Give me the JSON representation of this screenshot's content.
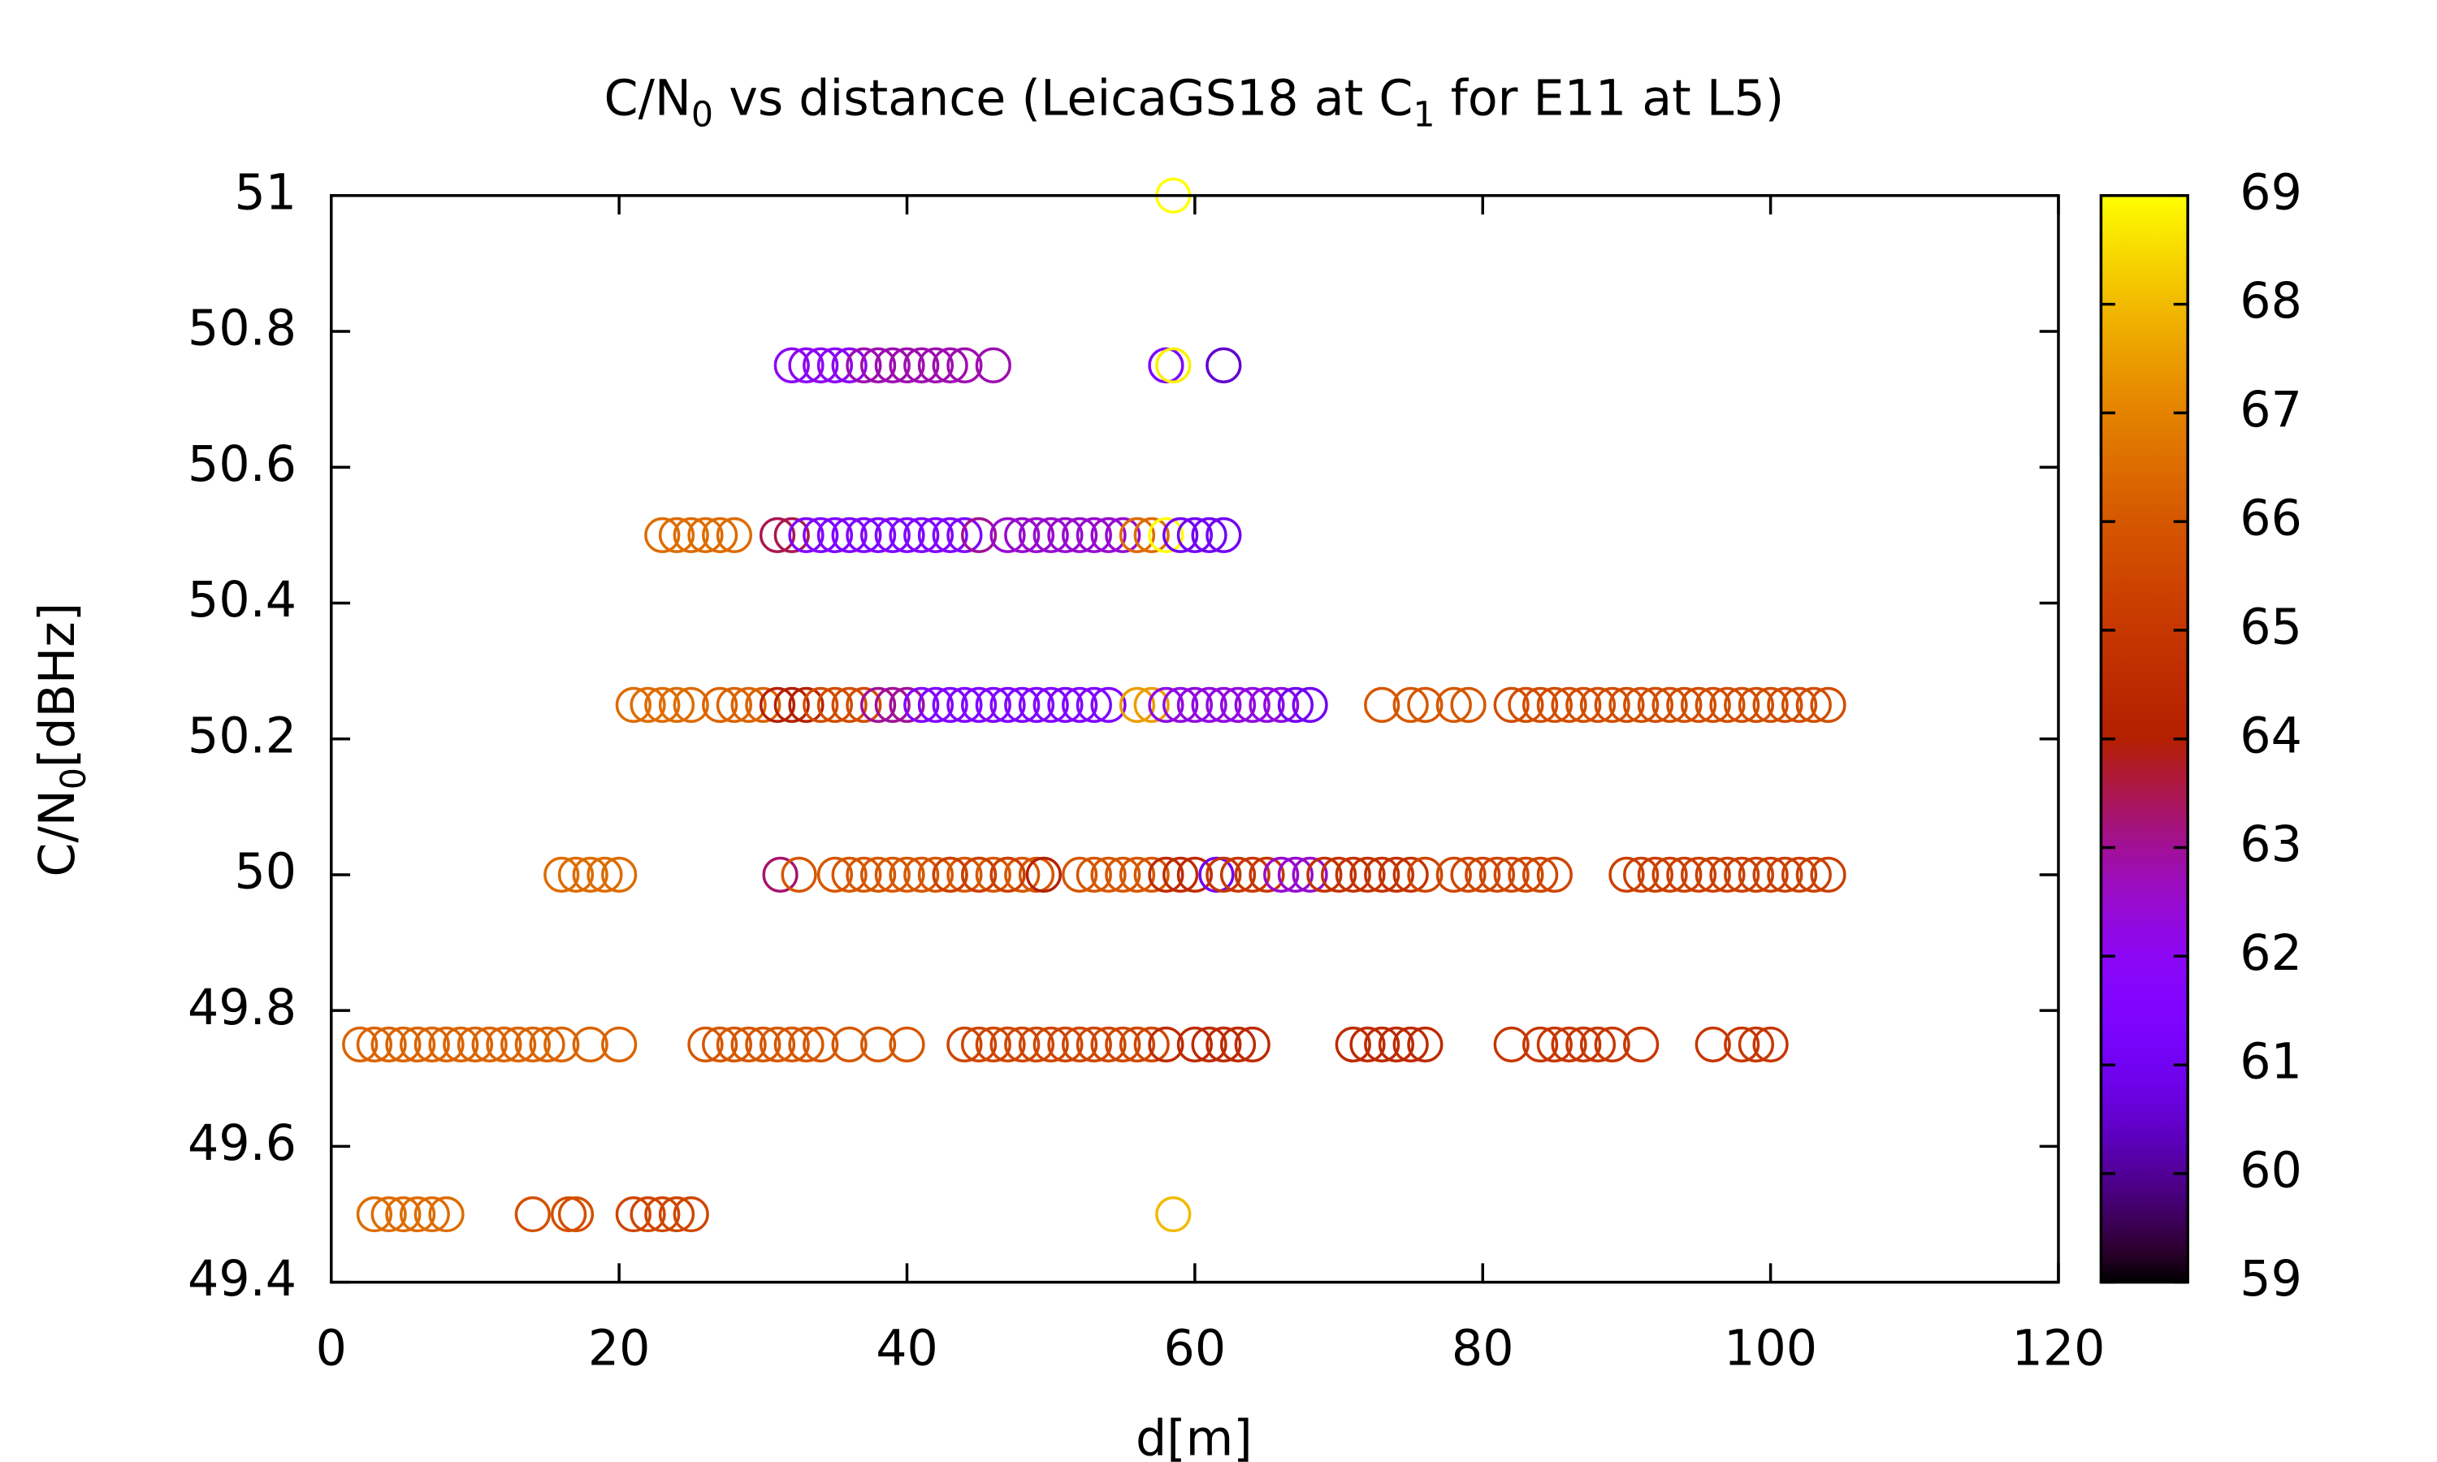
{
  "chart_data": {
    "type": "scatter",
    "title": [
      "C/N",
      "0",
      " vs distance (LeicaGS18 at C",
      "1",
      " for E11 at L5)"
    ],
    "xlabel": "d[m]",
    "ylabel": [
      "C/N",
      "0",
      "[dBHz]"
    ],
    "xlim": [
      0,
      120
    ],
    "xticks": [
      0,
      20,
      40,
      60,
      80,
      100,
      120
    ],
    "ylim": [
      49.4,
      51
    ],
    "yticks": [
      49.4,
      49.6,
      49.8,
      50,
      50.2,
      50.4,
      50.6,
      50.8,
      51
    ],
    "clim": [
      59,
      69
    ],
    "cticks": [
      59,
      60,
      61,
      62,
      63,
      64,
      65,
      66,
      67,
      68,
      69
    ],
    "x": [
      3,
      4,
      5,
      6,
      7,
      8,
      14,
      16.5,
      17,
      21,
      22,
      23,
      24,
      25,
      58.5,
      2,
      3,
      4,
      5,
      6,
      7,
      8,
      9,
      10,
      11,
      12,
      13,
      14,
      15,
      16,
      18,
      20,
      26,
      27,
      28,
      29,
      30,
      31,
      32,
      33,
      34,
      36,
      38,
      40,
      44,
      45,
      46,
      47,
      48,
      49,
      50,
      51,
      52,
      53,
      54,
      55,
      56,
      57,
      58,
      60,
      61,
      62,
      63,
      64,
      71,
      72,
      73,
      74,
      75,
      76,
      82,
      84,
      85,
      86,
      87,
      88,
      89,
      91,
      96,
      98,
      99,
      100,
      16,
      17,
      18,
      19,
      20,
      31.2,
      32.5,
      35,
      36,
      37,
      38,
      39,
      40,
      41,
      42,
      43,
      44,
      45,
      46,
      47,
      48,
      49,
      43,
      45,
      47,
      49.5,
      52,
      53,
      54,
      55,
      56,
      57,
      58,
      59,
      60,
      61.5,
      62,
      63,
      64,
      65,
      66,
      67,
      68,
      69,
      70,
      71,
      72,
      73,
      74,
      75,
      76,
      78,
      79,
      80,
      81,
      82,
      83,
      84,
      85,
      90,
      91,
      92,
      93,
      94,
      95,
      96,
      97,
      98,
      99,
      100,
      101,
      102,
      103,
      104,
      21,
      22,
      23,
      24,
      25,
      27,
      28,
      29,
      30,
      31,
      32,
      33,
      34,
      35,
      36,
      37,
      38,
      39,
      40,
      41,
      42,
      43,
      44,
      45,
      46,
      47,
      48,
      49,
      50,
      51,
      52,
      53,
      54,
      56,
      57,
      58,
      59,
      60,
      61,
      62,
      63,
      64,
      65,
      66,
      67,
      68,
      73,
      75,
      76,
      78,
      79,
      82,
      83,
      84,
      85,
      86,
      87,
      88,
      89,
      90,
      91,
      92,
      93,
      94,
      95,
      96,
      97,
      98,
      99,
      100,
      101,
      102,
      103,
      104,
      23,
      24,
      25,
      26,
      27,
      28,
      31,
      32,
      33,
      34,
      35,
      36,
      37,
      38,
      39,
      40,
      41,
      42,
      43,
      44,
      45,
      47,
      48,
      49,
      50,
      51,
      52,
      53,
      54,
      55,
      56,
      57,
      58,
      59,
      60,
      61,
      62,
      32,
      33,
      34,
      35,
      36,
      37,
      38,
      39,
      40,
      41,
      42,
      43,
      44,
      46,
      58,
      58.5,
      62,
      58.5
    ],
    "y": [
      49.5,
      49.5,
      49.5,
      49.5,
      49.5,
      49.5,
      49.5,
      49.5,
      49.5,
      49.5,
      49.5,
      49.5,
      49.5,
      49.5,
      49.5,
      49.75,
      49.75,
      49.75,
      49.75,
      49.75,
      49.75,
      49.75,
      49.75,
      49.75,
      49.75,
      49.75,
      49.75,
      49.75,
      49.75,
      49.75,
      49.75,
      49.75,
      49.75,
      49.75,
      49.75,
      49.75,
      49.75,
      49.75,
      49.75,
      49.75,
      49.75,
      49.75,
      49.75,
      49.75,
      49.75,
      49.75,
      49.75,
      49.75,
      49.75,
      49.75,
      49.75,
      49.75,
      49.75,
      49.75,
      49.75,
      49.75,
      49.75,
      49.75,
      49.75,
      49.75,
      49.75,
      49.75,
      49.75,
      49.75,
      49.75,
      49.75,
      49.75,
      49.75,
      49.75,
      49.75,
      49.75,
      49.75,
      49.75,
      49.75,
      49.75,
      49.75,
      49.75,
      49.75,
      49.75,
      49.75,
      49.75,
      49.75,
      50,
      50,
      50,
      50,
      50,
      50,
      50,
      50,
      50,
      50,
      50,
      50,
      50,
      50,
      50,
      50,
      50,
      50,
      50,
      50,
      50,
      50,
      50,
      50,
      50,
      50,
      50,
      50,
      50,
      50,
      50,
      50,
      50,
      50,
      50,
      50,
      50,
      50,
      50,
      50,
      50,
      50,
      50,
      50,
      50,
      50,
      50,
      50,
      50,
      50,
      50,
      50,
      50,
      50,
      50,
      50,
      50,
      50,
      50,
      50,
      50,
      50,
      50,
      50,
      50,
      50,
      50,
      50,
      50,
      50,
      50,
      50,
      50,
      50,
      50.25,
      50.25,
      50.25,
      50.25,
      50.25,
      50.25,
      50.25,
      50.25,
      50.25,
      50.25,
      50.25,
      50.25,
      50.25,
      50.25,
      50.25,
      50.25,
      50.25,
      50.25,
      50.25,
      50.25,
      50.25,
      50.25,
      50.25,
      50.25,
      50.25,
      50.25,
      50.25,
      50.25,
      50.25,
      50.25,
      50.25,
      50.25,
      50.25,
      50.25,
      50.25,
      50.25,
      50.25,
      50.25,
      50.25,
      50.25,
      50.25,
      50.25,
      50.25,
      50.25,
      50.25,
      50.25,
      50.25,
      50.25,
      50.25,
      50.25,
      50.25,
      50.25,
      50.25,
      50.25,
      50.25,
      50.25,
      50.25,
      50.25,
      50.25,
      50.25,
      50.25,
      50.25,
      50.25,
      50.25,
      50.25,
      50.25,
      50.25,
      50.25,
      50.25,
      50.25,
      50.25,
      50.25,
      50.25,
      50.25,
      50.5,
      50.5,
      50.5,
      50.5,
      50.5,
      50.5,
      50.5,
      50.5,
      50.5,
      50.5,
      50.5,
      50.5,
      50.5,
      50.5,
      50.5,
      50.5,
      50.5,
      50.5,
      50.5,
      50.5,
      50.5,
      50.5,
      50.5,
      50.5,
      50.5,
      50.5,
      50.5,
      50.5,
      50.5,
      50.5,
      50.5,
      50.5,
      50.5,
      50.5,
      50.5,
      50.5,
      50.5,
      50.75,
      50.75,
      50.75,
      50.75,
      50.75,
      50.75,
      50.75,
      50.75,
      50.75,
      50.75,
      50.75,
      50.75,
      50.75,
      50.75,
      50.75,
      50.75,
      50.75,
      51
    ],
    "c": [
      66.5,
      66.5,
      66.5,
      66.5,
      66.5,
      66.5,
      65.8,
      65.8,
      65.8,
      65.5,
      65.5,
      65.5,
      65.5,
      65.5,
      68,
      66.3,
      66.3,
      66.3,
      66.3,
      66.3,
      66.3,
      66.3,
      66.3,
      66.3,
      66.3,
      66.3,
      66.3,
      66.3,
      66.3,
      66.3,
      66.3,
      66.3,
      66,
      66,
      66,
      66,
      66,
      66,
      66,
      66,
      66,
      66,
      66,
      66,
      65.5,
      65.5,
      65.5,
      65.5,
      65.5,
      65.5,
      65.5,
      65.5,
      65.5,
      65.5,
      65.5,
      65.5,
      65.5,
      65.5,
      64.5,
      64.5,
      64.5,
      64.5,
      64.5,
      64.5,
      64.5,
      64.5,
      64.5,
      64.5,
      64.5,
      64.5,
      65,
      65,
      65,
      65,
      65,
      65,
      65,
      65,
      65,
      65,
      65,
      65,
      66.5,
      66.5,
      66.5,
      66.5,
      66.5,
      63.3,
      66,
      66,
      66,
      66,
      66,
      66,
      66,
      66,
      66,
      66,
      66,
      66,
      66,
      66,
      66,
      66,
      65.3,
      65.3,
      65.3,
      64,
      66,
      66,
      66,
      66,
      66,
      66,
      64.5,
      64.5,
      64.5,
      61,
      65,
      65,
      65,
      65,
      62.5,
      62.5,
      62.5,
      64.8,
      64.8,
      64.8,
      64.8,
      64.8,
      64.8,
      64.8,
      65.5,
      65.5,
      65.5,
      65.5,
      65.5,
      65.5,
      65.5,
      65.5,
      65.5,
      65.3,
      65.3,
      65.3,
      65.3,
      65.3,
      65.3,
      65.3,
      65.3,
      65.3,
      65.3,
      65.3,
      65.3,
      65.3,
      65.3,
      65.3,
      66.5,
      66.5,
      66.5,
      66.5,
      66.5,
      66.3,
      66.3,
      66.3,
      66.3,
      64,
      64,
      64,
      65.7,
      65.7,
      65.7,
      65.7,
      63,
      63,
      63,
      61.5,
      61.5,
      61.5,
      61.5,
      61.5,
      61.5,
      61.5,
      61.5,
      61.5,
      61.5,
      61.5,
      61.5,
      61.5,
      61.5,
      67.5,
      67.5,
      62.3,
      62.3,
      62.3,
      62.3,
      62.3,
      62.3,
      62.3,
      62.3,
      62.3,
      61,
      61,
      66,
      66,
      66,
      66,
      66,
      65.7,
      65.7,
      65.7,
      65.7,
      65.7,
      65.7,
      65.7,
      65.7,
      65.7,
      65.7,
      65.7,
      65.7,
      65.7,
      65.7,
      65.7,
      65.7,
      65.7,
      65.7,
      65.7,
      65.7,
      65.7,
      65.7,
      65.7,
      66.5,
      66.5,
      66.5,
      66.5,
      66.5,
      66.5,
      63.5,
      63.5,
      61.5,
      61.5,
      61.5,
      61.5,
      61.5,
      61.5,
      61.5,
      61.5,
      61.5,
      61.5,
      61.5,
      61.5,
      63,
      62.5,
      62.5,
      62.5,
      62.5,
      62.5,
      62.5,
      62.5,
      62.5,
      62.5,
      66.5,
      66.5,
      69,
      61,
      61,
      61,
      61,
      62,
      62,
      62,
      62,
      62,
      62.8,
      62.8,
      62.8,
      62.8,
      62.8,
      62.8,
      62.8,
      62.8,
      62.8,
      61.5,
      68.8,
      60.5,
      69
    ]
  }
}
